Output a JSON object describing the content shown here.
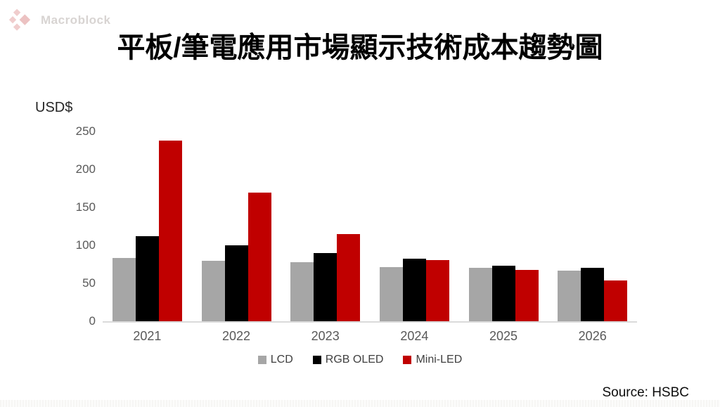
{
  "logo": {
    "text": "Macroblock",
    "icon": "macroblock-diamonds-icon",
    "icon_color": "#efc9c9"
  },
  "title": "平板/筆電應用市場顯示技術成本趨勢圖",
  "y_axis_unit_label": "USD$",
  "source_label": "Source: HSBC",
  "colors": {
    "lcd": "#a6a6a6",
    "rgb_oled": "#000000",
    "mini_led": "#c00000",
    "axis_line": "#dadada",
    "tick_text": "#595959",
    "legend_text": "#404040"
  },
  "chart_data": {
    "type": "bar",
    "title": "平板/筆電應用市場顯示技術成本趨勢圖",
    "categories": [
      "2021",
      "2022",
      "2023",
      "2024",
      "2025",
      "2026"
    ],
    "series": [
      {
        "name": "LCD",
        "color": "#a6a6a6",
        "values": [
          83,
          80,
          78,
          71,
          70,
          67
        ]
      },
      {
        "name": "RGB OLED",
        "color": "#000000",
        "values": [
          112,
          100,
          90,
          82,
          73,
          70
        ]
      },
      {
        "name": "Mini-LED",
        "color": "#c00000",
        "values": [
          238,
          169,
          115,
          81,
          68,
          54
        ]
      }
    ],
    "xlabel": "",
    "ylabel": "USD$",
    "ylim": [
      0,
      250
    ],
    "yticks": [
      0,
      50,
      100,
      150,
      200,
      250
    ],
    "grid": false,
    "legend_position": "bottom-center"
  }
}
